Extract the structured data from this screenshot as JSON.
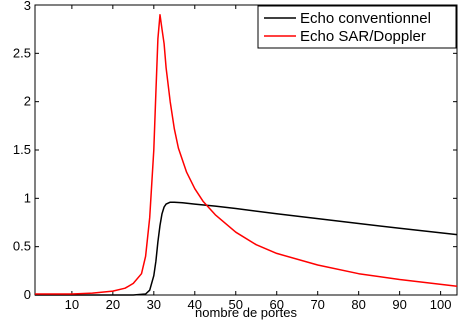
{
  "chart_data": {
    "type": "line",
    "title": "",
    "xlabel": "nombre de portes",
    "ylabel": "",
    "xlim": [
      1,
      104
    ],
    "ylim": [
      0,
      3
    ],
    "xticks": [
      10,
      20,
      30,
      40,
      50,
      60,
      70,
      80,
      90,
      100
    ],
    "yticks": [
      0,
      0.5,
      1,
      1.5,
      2,
      2.5,
      3
    ],
    "ytick_labels": [
      "0",
      "0.5",
      "1",
      "1.5",
      "2",
      "2.5",
      "3"
    ],
    "grid": false,
    "legend_position": "top-right",
    "series": [
      {
        "name": "Echo conventionnel",
        "color": "#000000",
        "x": [
          1,
          10,
          20,
          25,
          28,
          29,
          30,
          30.5,
          31,
          31.5,
          32,
          32.5,
          33,
          34,
          35,
          37,
          40,
          45,
          50,
          60,
          70,
          80,
          90,
          104
        ],
        "y": [
          0,
          0,
          0,
          0,
          0.01,
          0.05,
          0.2,
          0.35,
          0.55,
          0.72,
          0.84,
          0.91,
          0.94,
          0.96,
          0.96,
          0.955,
          0.94,
          0.92,
          0.895,
          0.84,
          0.79,
          0.74,
          0.69,
          0.625
        ]
      },
      {
        "name": "Echo SAR/Doppler",
        "color": "#ff0000",
        "x": [
          1,
          10,
          15,
          20,
          23,
          25,
          27,
          28,
          29,
          30,
          30.5,
          31,
          31.5,
          32,
          32.5,
          33,
          34,
          35,
          36,
          38,
          40,
          42,
          45,
          50,
          55,
          60,
          70,
          80,
          90,
          104
        ],
        "y": [
          0.01,
          0.01,
          0.02,
          0.04,
          0.07,
          0.12,
          0.22,
          0.4,
          0.8,
          1.5,
          2.1,
          2.65,
          2.9,
          2.75,
          2.6,
          2.35,
          2.0,
          1.72,
          1.52,
          1.27,
          1.1,
          0.97,
          0.83,
          0.65,
          0.52,
          0.43,
          0.31,
          0.22,
          0.16,
          0.09
        ]
      }
    ]
  }
}
